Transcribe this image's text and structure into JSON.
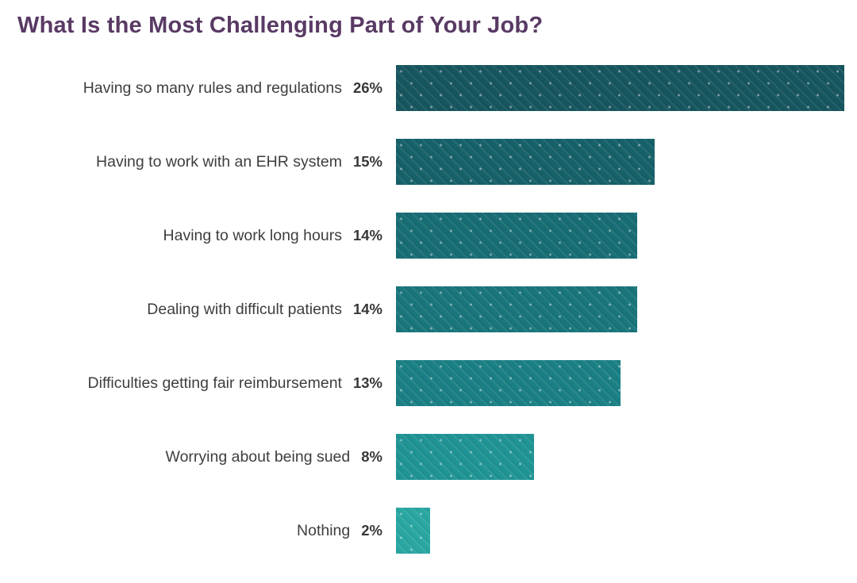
{
  "title": "What Is the Most Challenging Part of Your Job?",
  "colors": {
    "background": "#ffffff",
    "title_text": "#593a64",
    "label_text": "#3e3e3e",
    "value_text": "#383838",
    "bar_palette_dark_to_light": [
      "#17565f",
      "#176169",
      "#186d74",
      "#19767b",
      "#1b8085",
      "#209495",
      "#2aa7a2"
    ]
  },
  "chart_data": {
    "type": "bar",
    "orientation": "horizontal",
    "title": "What Is the Most Challenging Part of Your Job?",
    "categories": [
      "Having so many rules and regulations",
      "Having to work with an EHR system",
      "Having to work long hours",
      "Dealing with difficult patients",
      "Difficulties getting fair reimbursement",
      "Worrying about being sued",
      "Nothing"
    ],
    "values": [
      26,
      15,
      14,
      14,
      13,
      8,
      2
    ],
    "value_labels": [
      "26%",
      "15%",
      "14%",
      "14%",
      "13%",
      "8%",
      "2%"
    ],
    "bar_colors": [
      "#17565f",
      "#176169",
      "#186d74",
      "#19767b",
      "#1b8085",
      "#209495",
      "#2aa7a2"
    ],
    "xlabel": "",
    "ylabel": "",
    "xlim": [
      0,
      26
    ],
    "grid": false,
    "legend": false,
    "axis_ticks_visible": false,
    "bar_texture": "diagonal-stripes-with-dots",
    "value_label_position": "left-of-bar"
  }
}
